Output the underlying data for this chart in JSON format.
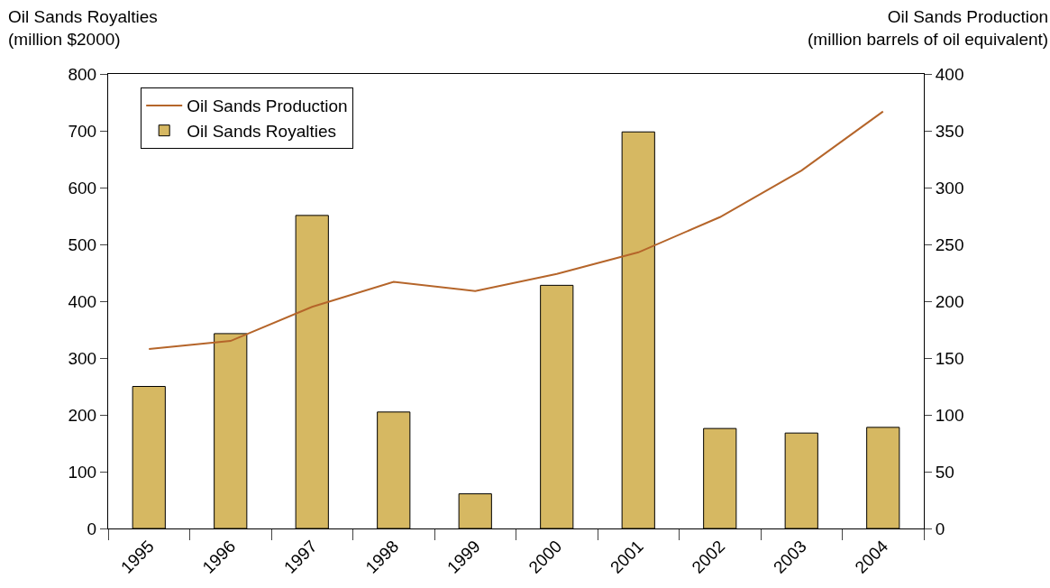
{
  "chart_data": {
    "type": "bar",
    "ylabel": "Oil Sands Royalties\n(million $2000)",
    "y2label": "Oil Sands Production\n(million barrels of oil equivalent)",
    "categories": [
      "1995",
      "1996",
      "1997",
      "1998",
      "1999",
      "2000",
      "2001",
      "2002",
      "2003",
      "2004"
    ],
    "series": [
      {
        "name": "Oil Sands Production",
        "type": "line",
        "axis": "y2",
        "color": "#b5652a",
        "values": [
          158,
          165,
          195,
          217,
          209,
          224,
          243,
          274,
          315,
          367
        ]
      },
      {
        "name": "Oil Sands Royalties",
        "color": "#d6b862",
        "values": [
          250,
          343,
          551,
          205,
          61,
          428,
          698,
          176,
          168,
          178
        ]
      }
    ],
    "ylim": [
      0,
      800
    ],
    "yticks": [
      0,
      100,
      200,
      300,
      400,
      500,
      600,
      700,
      800
    ],
    "y2lim": [
      0,
      400
    ],
    "y2ticks": [
      0,
      50,
      100,
      150,
      200,
      250,
      300,
      350,
      400
    ],
    "legend": "top left"
  }
}
